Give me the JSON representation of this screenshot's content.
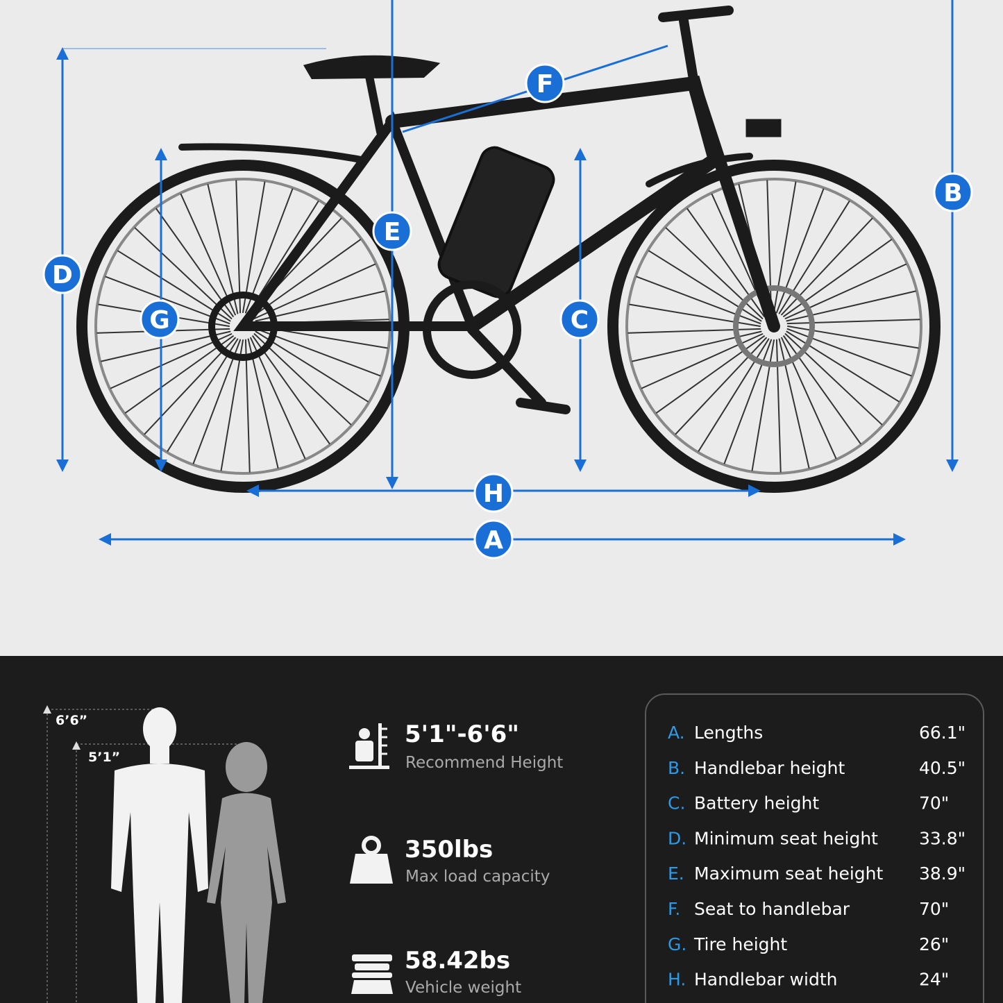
{
  "diagram": {
    "markers": [
      "A",
      "B",
      "C",
      "D",
      "E",
      "F",
      "G",
      "H"
    ]
  },
  "height_scale": {
    "top": "6’6”",
    "bottom": "5’1”"
  },
  "features": [
    {
      "value": "5'1\"-6'6\"",
      "label": "Recommend Height"
    },
    {
      "value": "350lbs",
      "label": "Max load capacity"
    },
    {
      "value": "58.42bs",
      "label": "Vehicle weight"
    }
  ],
  "specs": [
    {
      "letter": "A.",
      "name": "Lengths",
      "value": "66.1\""
    },
    {
      "letter": "B.",
      "name": "Handlebar height",
      "value": "40.5\""
    },
    {
      "letter": "C.",
      "name": "Battery height",
      "value": "70\""
    },
    {
      "letter": "D.",
      "name": "Minimum seat height",
      "value": "33.8\""
    },
    {
      "letter": "E.",
      "name": "Maximum seat height",
      "value": "38.9\""
    },
    {
      "letter": "F.",
      "name": "Seat to handlebar",
      "value": "70\""
    },
    {
      "letter": "G.",
      "name": "Tire height",
      "value": "26\""
    },
    {
      "letter": "H.",
      "name": "Handlebar width",
      "value": "24\""
    }
  ]
}
